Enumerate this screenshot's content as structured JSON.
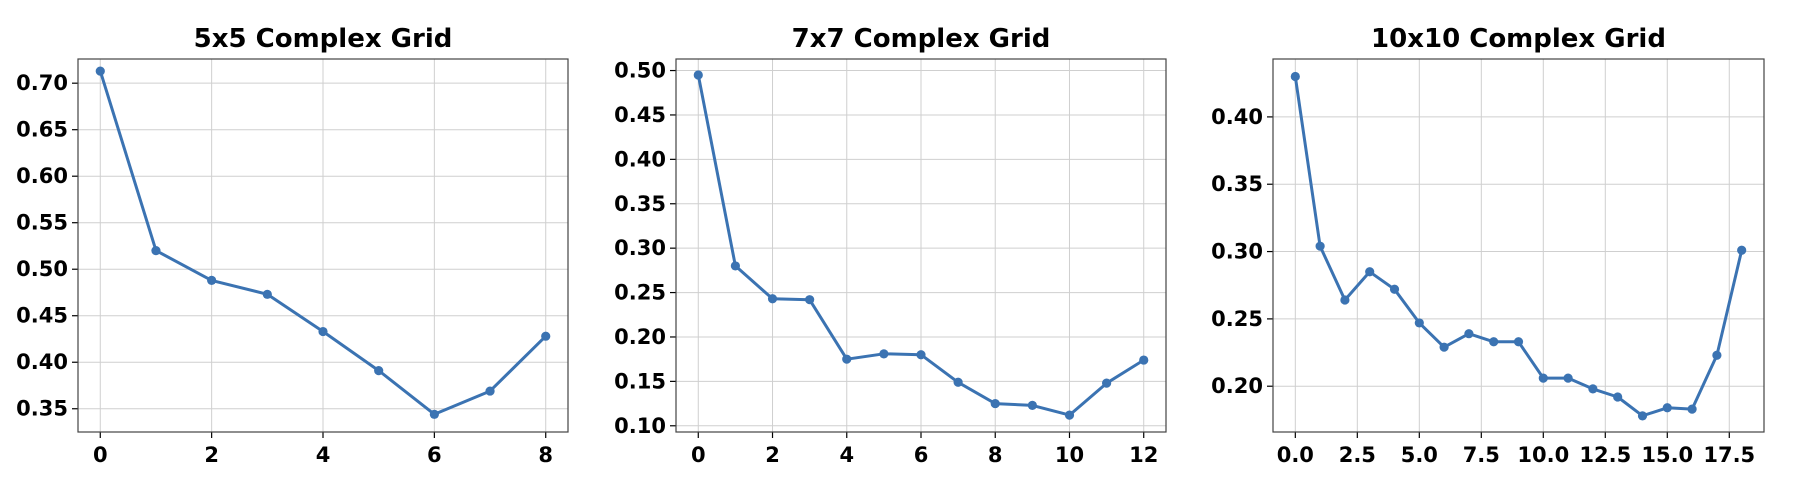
{
  "style": {
    "line_color": "#3b73b2",
    "grid_color": "#cfcfcf",
    "frame_color": "#444444"
  },
  "chart_data": [
    {
      "type": "line",
      "title": "5x5 Complex Grid",
      "grid": true,
      "x": [
        0,
        1,
        2,
        3,
        4,
        5,
        6,
        7,
        8
      ],
      "y": [
        0.713,
        0.52,
        0.488,
        0.473,
        0.433,
        0.391,
        0.344,
        0.369,
        0.428
      ],
      "xlim": [
        -0.4,
        8.4
      ],
      "ylim": [
        0.325,
        0.726
      ],
      "xticks": [
        0,
        2,
        4,
        6,
        8
      ],
      "xtick_labels": [
        "0",
        "2",
        "4",
        "6",
        "8"
      ],
      "yticks": [
        0.35,
        0.4,
        0.45,
        0.5,
        0.55,
        0.6,
        0.65,
        0.7
      ],
      "ytick_labels": [
        "0.35",
        "0.40",
        "0.45",
        "0.50",
        "0.55",
        "0.60",
        "0.65",
        "0.70"
      ]
    },
    {
      "type": "line",
      "title": "7x7 Complex Grid",
      "grid": true,
      "x": [
        0,
        1,
        2,
        3,
        4,
        5,
        6,
        7,
        8,
        9,
        10,
        11,
        12
      ],
      "y": [
        0.495,
        0.28,
        0.243,
        0.242,
        0.175,
        0.181,
        0.18,
        0.149,
        0.125,
        0.123,
        0.112,
        0.148,
        0.174
      ],
      "xlim": [
        -0.6,
        12.6
      ],
      "ylim": [
        0.093,
        0.513
      ],
      "xticks": [
        0,
        2,
        4,
        6,
        8,
        10,
        12
      ],
      "xtick_labels": [
        "0",
        "2",
        "4",
        "6",
        "8",
        "10",
        "12"
      ],
      "yticks": [
        0.1,
        0.15,
        0.2,
        0.25,
        0.3,
        0.35,
        0.4,
        0.45,
        0.5
      ],
      "ytick_labels": [
        "0.10",
        "0.15",
        "0.20",
        "0.25",
        "0.30",
        "0.35",
        "0.40",
        "0.45",
        "0.50"
      ]
    },
    {
      "type": "line",
      "title": "10x10 Complex Grid",
      "grid": true,
      "x": [
        0,
        1,
        2,
        3,
        4,
        5,
        6,
        7,
        8,
        9,
        10,
        11,
        12,
        13,
        14,
        15,
        16,
        17,
        18
      ],
      "y": [
        0.43,
        0.304,
        0.264,
        0.285,
        0.272,
        0.247,
        0.229,
        0.239,
        0.233,
        0.233,
        0.206,
        0.206,
        0.198,
        0.192,
        0.178,
        0.184,
        0.183,
        0.223,
        0.301
      ],
      "xlim": [
        -0.9,
        18.9
      ],
      "ylim": [
        0.166,
        0.443
      ],
      "xticks": [
        0,
        2.5,
        5,
        7.5,
        10,
        12.5,
        15,
        17.5
      ],
      "xtick_labels": [
        "0.0",
        "2.5",
        "5.0",
        "7.5",
        "10.0",
        "12.5",
        "15.0",
        "17.5"
      ],
      "yticks": [
        0.2,
        0.25,
        0.3,
        0.35,
        0.4
      ],
      "ytick_labels": [
        "0.20",
        "0.25",
        "0.30",
        "0.35",
        "0.40"
      ]
    }
  ]
}
